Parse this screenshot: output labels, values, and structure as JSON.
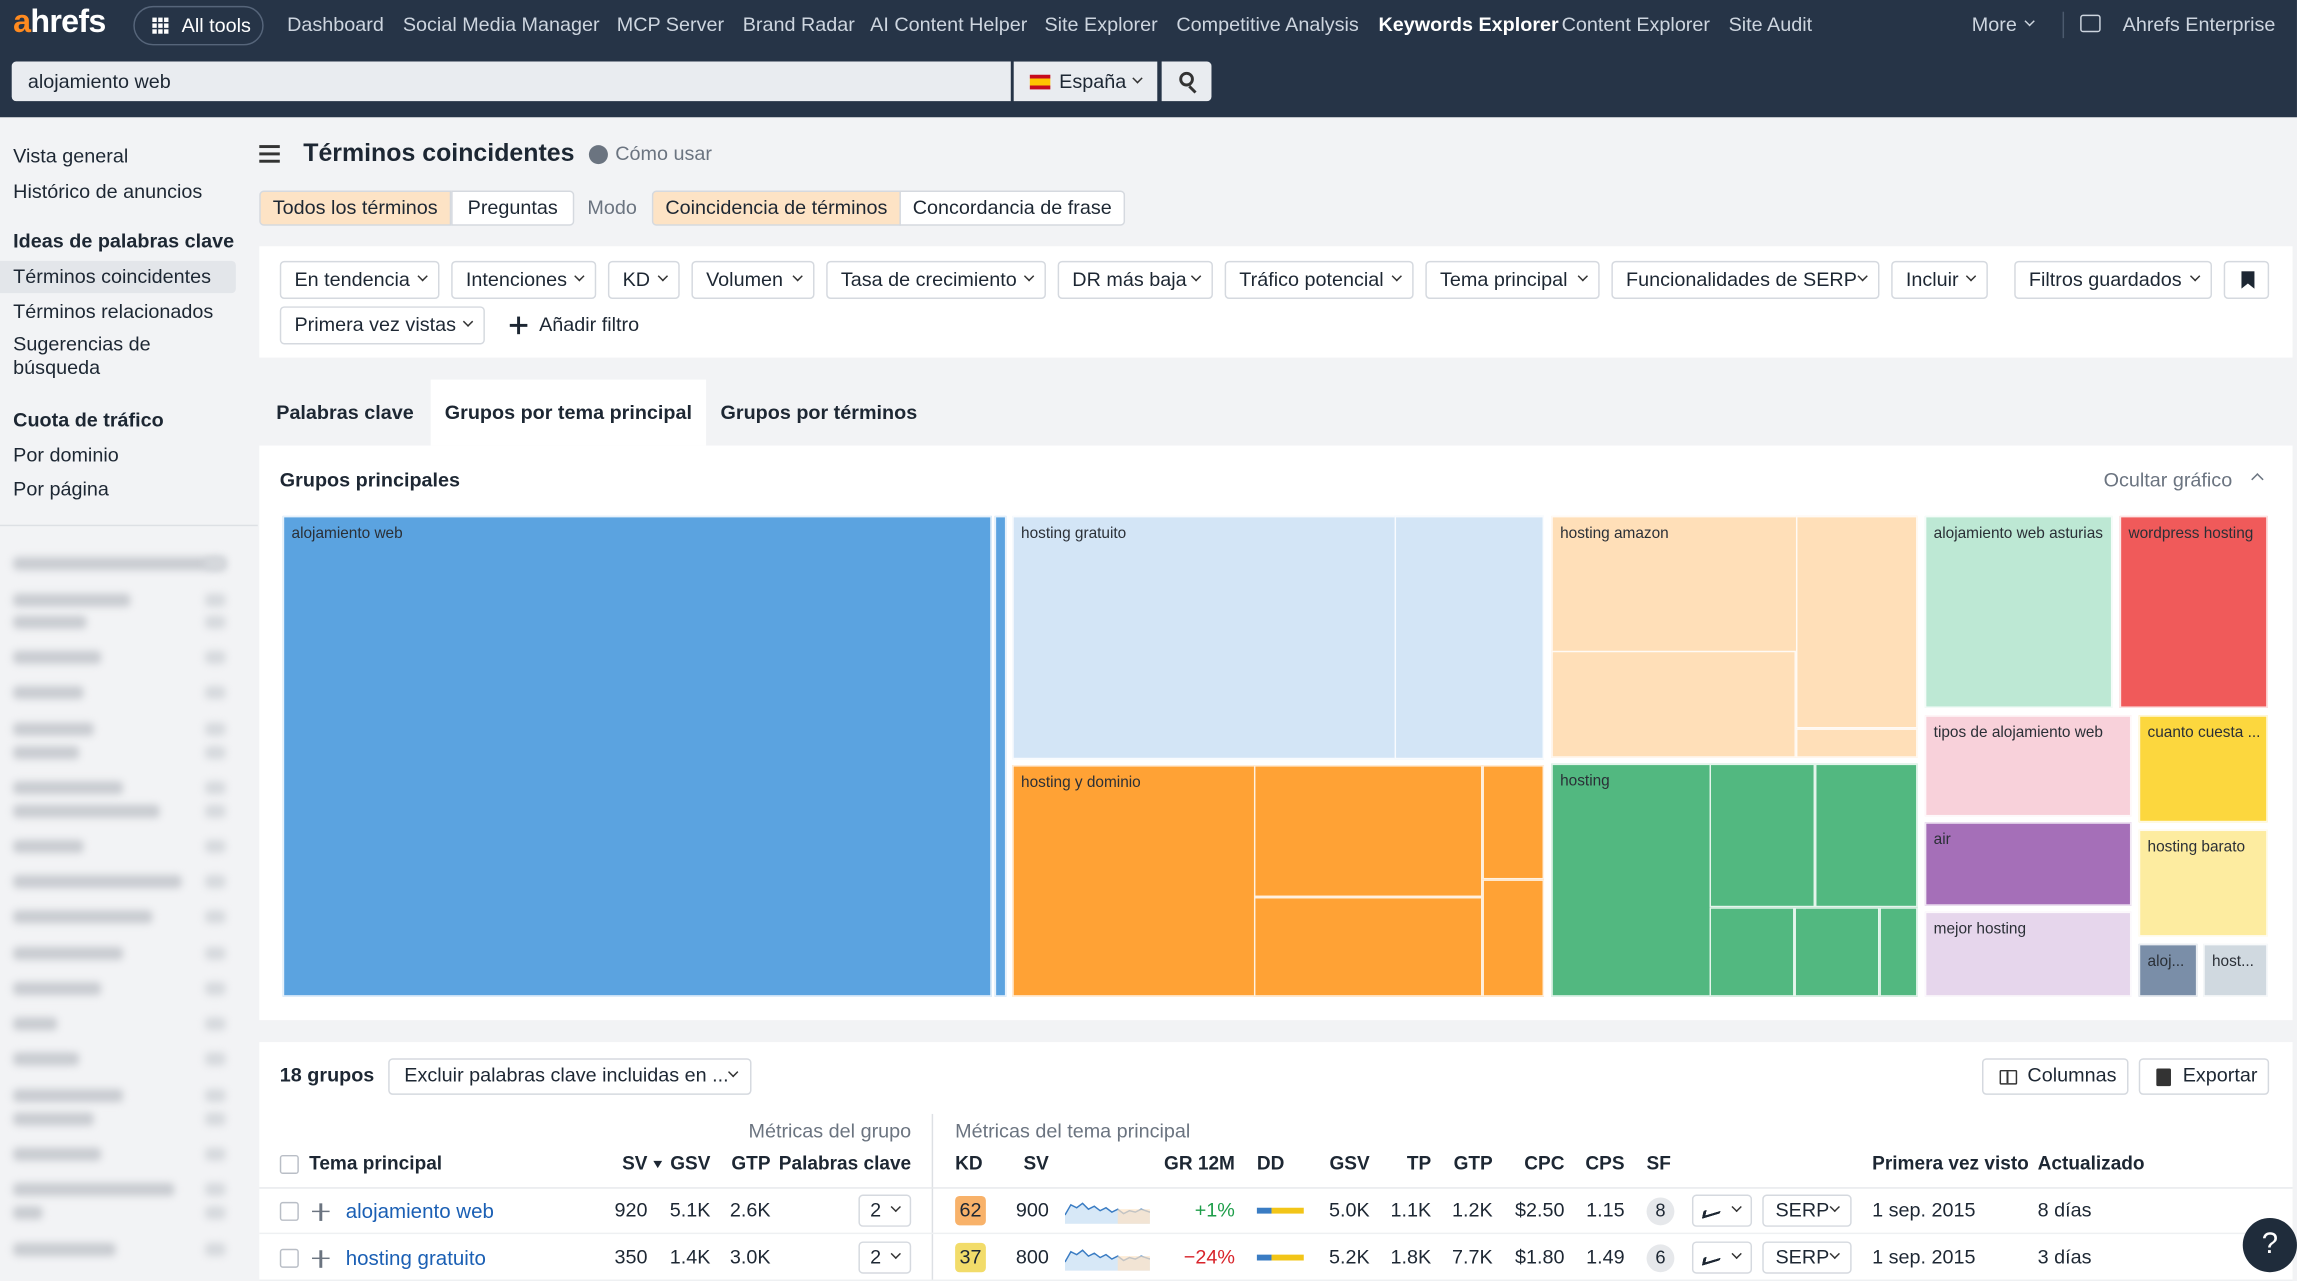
{
  "nav": {
    "logo": "ahrefs",
    "all_tools": "All tools",
    "items": [
      "Dashboard",
      "Social Media Manager",
      "MCP Server",
      "Brand Radar",
      "AI Content Helper",
      "Site Explorer",
      "Competitive Analysis",
      "Keywords Explorer",
      "Content Explorer",
      "Site Audit"
    ],
    "more": "More",
    "account": "Ahrefs Enterprise"
  },
  "search": {
    "query": "alojamiento web",
    "country": "España"
  },
  "sidebar": {
    "top": [
      "Vista general",
      "Histórico de anuncios"
    ],
    "sections": [
      {
        "title": "Ideas de palabras clave",
        "items": [
          "Términos coincidentes",
          "Términos relacionados",
          "Sugerencias de búsqueda"
        ]
      },
      {
        "title": "Cuota de tráfico",
        "items": [
          "Por dominio",
          "Por página"
        ]
      }
    ]
  },
  "header": {
    "title": "Términos coincidentes",
    "help": "Cómo usar"
  },
  "modes": {
    "terms": [
      "Todos los términos",
      "Preguntas"
    ],
    "label": "Modo",
    "match": [
      "Coincidencia de términos",
      "Concordancia de frase"
    ]
  },
  "filters": {
    "items": [
      "En tendencia",
      "Intenciones",
      "KD",
      "Volumen",
      "Tasa de crecimiento",
      "DR más baja",
      "Tráfico potencial",
      "Tema principal",
      "Funcionalidades de SERP",
      "Incluir",
      "Primera vez vistas"
    ],
    "saved": "Filtros guardados",
    "add": "Añadir filtro"
  },
  "tabs": [
    "Palabras clave",
    "Grupos por tema principal",
    "Grupos por términos"
  ],
  "chart": {
    "title": "Grupos principales",
    "hide": "Ocultar gráfico",
    "groups": [
      "alojamiento web",
      "hosting gratuito",
      "hosting y dominio",
      "hosting amazon",
      "hosting",
      "alojamiento web asturias",
      "wordpress hosting",
      "tipos de alojamiento web",
      "cuanto cuesta ...",
      "air",
      "hosting barato",
      "mejor hosting",
      "aloj...",
      "host..."
    ]
  },
  "table": {
    "count": "18 grupos",
    "exclude": "Excluir palabras clave incluidas en ...",
    "columns": "Columnas",
    "export": "Exportar",
    "group_headers": [
      "Métricas del grupo",
      "Métricas del tema principal"
    ],
    "headers": [
      "Tema principal",
      "SV",
      "GSV",
      "GTP",
      "Palabras clave",
      "KD",
      "SV",
      "GR 12M",
      "DD",
      "GSV",
      "TP",
      "GTP",
      "CPC",
      "CPS",
      "SF",
      "Primera vez visto",
      "Actualizado"
    ],
    "rows": [
      {
        "topic": "alojamiento web",
        "sv": "920",
        "gsv": "5.1K",
        "gtp": "2.6K",
        "keywords": "2",
        "kd": "62",
        "t_sv": "900",
        "gr": "+1%",
        "t_gsv": "5.0K",
        "tp": "1.1K",
        "t_gtp": "1.2K",
        "cpc": "$2.50",
        "cps": "1.15",
        "sf": "8",
        "serp": "SERP",
        "first_seen": "1 sep. 2015",
        "updated": "8 días"
      },
      {
        "topic": "hosting gratuito",
        "sv": "350",
        "gsv": "1.4K",
        "gtp": "3.0K",
        "keywords": "2",
        "kd": "37",
        "t_sv": "800",
        "gr": "−24%",
        "t_gsv": "5.2K",
        "tp": "1.8K",
        "t_gtp": "7.7K",
        "cpc": "$1.80",
        "cps": "1.49",
        "sf": "6",
        "serp": "SERP",
        "first_seen": "1 sep. 2015",
        "updated": "3 días"
      }
    ]
  },
  "help_button": "?"
}
